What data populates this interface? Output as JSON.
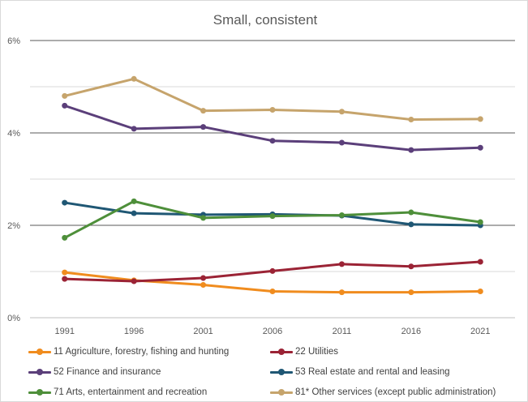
{
  "chart_data": {
    "type": "line",
    "title": "Small, consistent",
    "xlabel": "",
    "ylabel": "",
    "categories": [
      "1991",
      "1996",
      "2001",
      "2006",
      "2011",
      "2016",
      "2021"
    ],
    "ylim": [
      0,
      6
    ],
    "y_ticks": [
      "0%",
      "2%",
      "4%",
      "6%"
    ],
    "grid": true,
    "legend": "bottom",
    "series": [
      {
        "name": "11 Agriculture, forestry, fishing and hunting",
        "color": "#f08c1e",
        "values": [
          0.98,
          0.81,
          0.71,
          0.57,
          0.55,
          0.55,
          0.57
        ]
      },
      {
        "name": "22 Utilities",
        "color": "#9b2335",
        "values": [
          0.84,
          0.79,
          0.86,
          1.01,
          1.16,
          1.11,
          1.21
        ]
      },
      {
        "name": "52 Finance and insurance",
        "color": "#5b3f7a",
        "values": [
          4.59,
          4.09,
          4.13,
          3.83,
          3.79,
          3.63,
          3.68
        ]
      },
      {
        "name": "53 Real estate and rental and leasing",
        "color": "#1f5774",
        "values": [
          2.49,
          2.26,
          2.23,
          2.24,
          2.21,
          2.02,
          2.0
        ]
      },
      {
        "name": "71 Arts, entertainment and recreation",
        "color": "#4e8f3a",
        "values": [
          1.73,
          2.52,
          2.16,
          2.2,
          2.22,
          2.28,
          2.07
        ]
      },
      {
        "name": "81* Other services (except public administration)",
        "color": "#c6a46c",
        "values": [
          4.8,
          5.17,
          4.48,
          4.5,
          4.46,
          4.29,
          4.3
        ]
      }
    ]
  }
}
